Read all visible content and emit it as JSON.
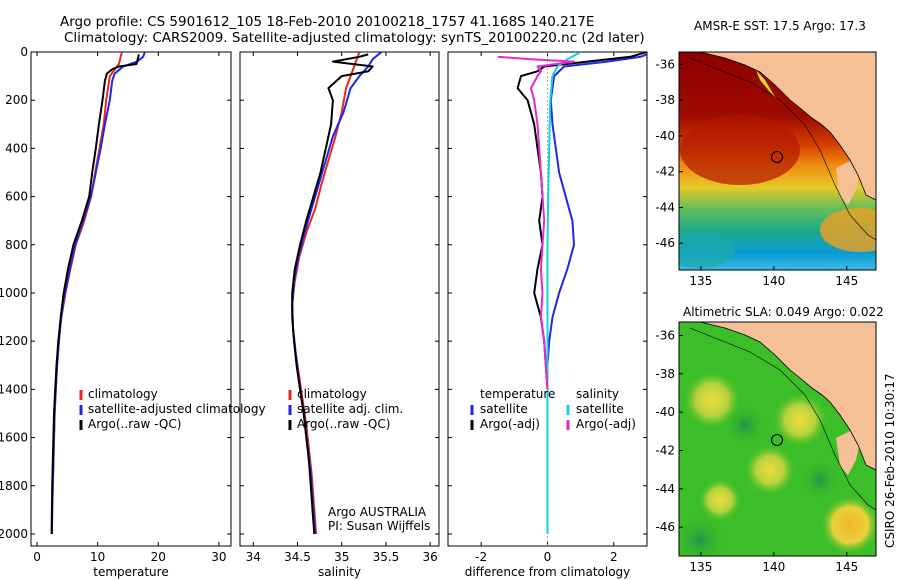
{
  "title": {
    "line1": "Argo profile: CS 5901612_105 18-Feb-2010 20100218_1757 41.168S 140.217E",
    "line2": "Climatology: CARS2009. Satellite-adjusted climatology: synTS_20100220.nc (2d later)"
  },
  "credit": "CSIRO 26-Feb-2010 10:30:17",
  "colors": {
    "climatology": "#e8281e",
    "satellite": "#1e28e6",
    "argo": "#000000",
    "salinity_satellite": "#14d2dc",
    "salinity_argo": "#e628d2",
    "land": "#f5c096"
  },
  "chart_data": [
    {
      "type": "line",
      "xlabel": "temperature",
      "ylabel": "",
      "xlim": [
        -1,
        32
      ],
      "ylim": [
        2050,
        0
      ],
      "y_reversed": true,
      "xticks": [
        0,
        10,
        20,
        30
      ],
      "yticks": [
        0,
        200,
        400,
        600,
        800,
        1000,
        1200,
        1400,
        1600,
        1800,
        2000
      ],
      "legend": [
        "climatology",
        "satellite-adjusted climatology",
        "Argo(..raw -QC)"
      ],
      "legend_placement": "lower-right",
      "series": [
        {
          "name": "climatology",
          "color_key": "climatology",
          "points": [
            [
              14,
              0
            ],
            [
              13.8,
              20
            ],
            [
              13.5,
              50
            ],
            [
              12.6,
              80
            ],
            [
              12,
              100
            ],
            [
              11.7,
              150
            ],
            [
              11.4,
              200
            ],
            [
              11,
              300
            ],
            [
              10.3,
              400
            ],
            [
              9.6,
              500
            ],
            [
              8.9,
              600
            ],
            [
              7.8,
              700
            ],
            [
              6.4,
              800
            ],
            [
              5.5,
              900
            ],
            [
              4.7,
              1000
            ],
            [
              4,
              1100
            ],
            [
              3.6,
              1200
            ],
            [
              3.3,
              1300
            ],
            [
              3.1,
              1400
            ],
            [
              2.9,
              1500
            ],
            [
              2.8,
              1600
            ],
            [
              2.7,
              1700
            ],
            [
              2.6,
              1800
            ],
            [
              2.5,
              1900
            ],
            [
              2.45,
              2000
            ]
          ]
        },
        {
          "name": "satellite-adjusted climatology",
          "color_key": "satellite",
          "points": [
            [
              17.8,
              0
            ],
            [
              17.5,
              20
            ],
            [
              16.5,
              40
            ],
            [
              14.2,
              60
            ],
            [
              12.8,
              90
            ],
            [
              12.4,
              120
            ],
            [
              12,
              200
            ],
            [
              11.2,
              300
            ],
            [
              10.5,
              400
            ],
            [
              9.7,
              500
            ],
            [
              8.9,
              600
            ],
            [
              7.6,
              700
            ],
            [
              6.3,
              800
            ],
            [
              5.4,
              900
            ],
            [
              4.6,
              1000
            ],
            [
              4,
              1100
            ],
            [
              3.6,
              1200
            ],
            [
              3.3,
              1300
            ],
            [
              3.1,
              1400
            ],
            [
              2.9,
              1500
            ],
            [
              2.8,
              1600
            ],
            [
              2.7,
              1700
            ],
            [
              2.6,
              1800
            ],
            [
              2.5,
              1900
            ],
            [
              2.45,
              2000
            ]
          ]
        },
        {
          "name": "Argo(..raw -QC)",
          "color_key": "argo",
          "points": [
            [
              16.8,
              10
            ],
            [
              16.6,
              30
            ],
            [
              16.4,
              50
            ],
            [
              13.5,
              60
            ],
            [
              12.5,
              70
            ],
            [
              11.5,
              90
            ],
            [
              11.2,
              120
            ],
            [
              10.8,
              200
            ],
            [
              10.2,
              300
            ],
            [
              9.7,
              400
            ],
            [
              9.1,
              500
            ],
            [
              8.6,
              600
            ],
            [
              7.4,
              700
            ],
            [
              6,
              800
            ],
            [
              5.1,
              900
            ],
            [
              4.4,
              1000
            ],
            [
              3.9,
              1100
            ],
            [
              3.5,
              1200
            ],
            [
              3.2,
              1300
            ],
            [
              3,
              1400
            ],
            [
              2.8,
              1500
            ],
            [
              2.7,
              1600
            ],
            [
              2.6,
              1700
            ],
            [
              2.5,
              1800
            ],
            [
              2.45,
              1900
            ],
            [
              2.4,
              2000
            ]
          ]
        }
      ]
    },
    {
      "type": "line",
      "xlabel": "salinity",
      "ylabel": "",
      "xlim": [
        33.85,
        36.1
      ],
      "ylim": [
        2050,
        0
      ],
      "y_reversed": true,
      "xticks": [
        34,
        34.5,
        35,
        35.5,
        36
      ],
      "xtick_labels": [
        "34",
        "34.5",
        "35",
        "35.5",
        "36"
      ],
      "legend": [
        "climatology",
        "satellite adj. clim.",
        "Argo(..raw -QC)"
      ],
      "legend_placement": "lower-right",
      "annotation": [
        "Argo AUSTRALIA",
        "PI: Susan Wijffels"
      ],
      "series": [
        {
          "name": "climatology",
          "color_key": "climatology",
          "points": [
            [
              35.2,
              0
            ],
            [
              35.15,
              50
            ],
            [
              35.1,
              100
            ],
            [
              35.05,
              150
            ],
            [
              35,
              250
            ],
            [
              34.93,
              350
            ],
            [
              34.85,
              450
            ],
            [
              34.77,
              550
            ],
            [
              34.7,
              650
            ],
            [
              34.6,
              750
            ],
            [
              34.52,
              850
            ],
            [
              34.47,
              950
            ],
            [
              34.44,
              1050
            ],
            [
              34.45,
              1150
            ],
            [
              34.48,
              1250
            ],
            [
              34.52,
              1350
            ],
            [
              34.56,
              1450
            ],
            [
              34.6,
              1550
            ],
            [
              34.63,
              1650
            ],
            [
              34.66,
              1750
            ],
            [
              34.68,
              1850
            ],
            [
              34.7,
              1950
            ],
            [
              34.71,
              2000
            ]
          ]
        },
        {
          "name": "satellite adj. clim.",
          "color_key": "satellite",
          "points": [
            [
              35.45,
              0
            ],
            [
              35.35,
              30
            ],
            [
              35.3,
              60
            ],
            [
              35.2,
              100
            ],
            [
              35.1,
              150
            ],
            [
              35.02,
              250
            ],
            [
              34.9,
              350
            ],
            [
              34.82,
              450
            ],
            [
              34.74,
              550
            ],
            [
              34.66,
              650
            ],
            [
              34.58,
              750
            ],
            [
              34.51,
              850
            ],
            [
              34.46,
              950
            ],
            [
              34.44,
              1050
            ],
            [
              34.45,
              1150
            ],
            [
              34.48,
              1250
            ],
            [
              34.51,
              1350
            ],
            [
              34.55,
              1450
            ],
            [
              34.59,
              1550
            ],
            [
              34.62,
              1650
            ],
            [
              34.65,
              1750
            ],
            [
              34.67,
              1850
            ],
            [
              34.69,
              1950
            ],
            [
              34.7,
              2000
            ]
          ]
        },
        {
          "name": "Argo(..raw -QC)",
          "color_key": "argo",
          "points": [
            [
              35.3,
              10
            ],
            [
              35.2,
              20
            ],
            [
              34.9,
              40
            ],
            [
              35.35,
              60
            ],
            [
              35.3,
              80
            ],
            [
              35,
              100
            ],
            [
              34.85,
              150
            ],
            [
              34.9,
              200
            ],
            [
              34.88,
              300
            ],
            [
              34.82,
              400
            ],
            [
              34.76,
              500
            ],
            [
              34.68,
              600
            ],
            [
              34.6,
              700
            ],
            [
              34.53,
              800
            ],
            [
              34.47,
              900
            ],
            [
              34.44,
              1000
            ],
            [
              34.44,
              1100
            ],
            [
              34.46,
              1200
            ],
            [
              34.49,
              1300
            ],
            [
              34.53,
              1400
            ],
            [
              34.57,
              1500
            ],
            [
              34.6,
              1600
            ],
            [
              34.63,
              1700
            ],
            [
              34.65,
              1800
            ],
            [
              34.67,
              1900
            ],
            [
              34.69,
              2000
            ]
          ]
        }
      ]
    },
    {
      "type": "line",
      "xlabel": "difference from climatology",
      "ylabel": "",
      "xlim": [
        -3,
        3
      ],
      "ylim": [
        2050,
        0
      ],
      "y_reversed": true,
      "xticks": [
        -2,
        0,
        2
      ],
      "legend_groups": [
        {
          "title": "temperature",
          "items": [
            "satellite",
            "Argo(-adj)"
          ]
        },
        {
          "title": "salinity",
          "items": [
            "satellite",
            "Argo(-adj)"
          ]
        }
      ],
      "legend_placement": "lower-center",
      "series": [
        {
          "name": "satellite",
          "group": "temperature",
          "color_key": "satellite",
          "points": [
            [
              3.2,
              0
            ],
            [
              2.8,
              20
            ],
            [
              1.8,
              40
            ],
            [
              0.5,
              60
            ],
            [
              0.2,
              100
            ],
            [
              0.1,
              200
            ],
            [
              0.15,
              300
            ],
            [
              0.25,
              400
            ],
            [
              0.35,
              500
            ],
            [
              0.55,
              600
            ],
            [
              0.75,
              700
            ],
            [
              0.8,
              800
            ],
            [
              0.6,
              900
            ],
            [
              0.35,
              1000
            ],
            [
              0.15,
              1100
            ],
            [
              0.05,
              1200
            ],
            [
              0,
              1300
            ],
            [
              0,
              1400
            ],
            [
              0,
              1600
            ],
            [
              0,
              1800
            ],
            [
              0,
              2000
            ]
          ]
        },
        {
          "name": "Argo(-adj)",
          "group": "temperature",
          "color_key": "argo",
          "points": [
            [
              3,
              0
            ],
            [
              2.5,
              20
            ],
            [
              1.2,
              40
            ],
            [
              -0.1,
              60
            ],
            [
              -0.3,
              80
            ],
            [
              -0.8,
              100
            ],
            [
              -0.9,
              150
            ],
            [
              -0.6,
              200
            ],
            [
              -0.4,
              300
            ],
            [
              -0.3,
              400
            ],
            [
              -0.2,
              500
            ],
            [
              -0.15,
              600
            ],
            [
              -0.25,
              700
            ],
            [
              -0.15,
              800
            ],
            [
              -0.3,
              900
            ],
            [
              -0.4,
              1000
            ],
            [
              -0.3,
              1050
            ],
            [
              -0.2,
              1100
            ],
            [
              -0.1,
              1200
            ],
            [
              -0.05,
              1300
            ],
            [
              0,
              1400
            ],
            [
              0,
              1600
            ],
            [
              0,
              1800
            ],
            [
              0,
              2000
            ]
          ]
        },
        {
          "name": "satellite",
          "group": "salinity",
          "color_key": "salinity_satellite",
          "points": [
            [
              1,
              0
            ],
            [
              0.6,
              30
            ],
            [
              0.3,
              60
            ],
            [
              0.15,
              100
            ],
            [
              0.08,
              200
            ],
            [
              0.05,
              400
            ],
            [
              0.02,
              600
            ],
            [
              0,
              800
            ],
            [
              0,
              1000
            ],
            [
              0,
              1200
            ],
            [
              0,
              1400
            ],
            [
              0,
              1600
            ],
            [
              0,
              1800
            ],
            [
              0,
              2000
            ]
          ]
        },
        {
          "name": "Argo(-adj)",
          "group": "salinity",
          "color_key": "salinity_argo",
          "points": [
            [
              -1.5,
              20
            ],
            [
              -0.5,
              30
            ],
            [
              0.8,
              40
            ],
            [
              -0.3,
              60
            ],
            [
              -0.2,
              80
            ],
            [
              -0.3,
              100
            ],
            [
              -0.5,
              150
            ],
            [
              -0.4,
              200
            ],
            [
              -0.3,
              300
            ],
            [
              -0.25,
              400
            ],
            [
              -0.2,
              500
            ],
            [
              -0.15,
              600
            ],
            [
              -0.1,
              700
            ],
            [
              -0.15,
              800
            ],
            [
              -0.2,
              900
            ],
            [
              -0.15,
              1000
            ],
            [
              -0.2,
              1100
            ],
            [
              -0.1,
              1200
            ],
            [
              -0.05,
              1300
            ],
            [
              0,
              1400
            ]
          ]
        }
      ]
    },
    {
      "type": "heatmap",
      "title": "AMSR-E SST: 17.5 Argo: 17.3",
      "xlim": [
        133.5,
        147
      ],
      "ylim": [
        -47.5,
        -35.3
      ],
      "xticks": [
        135,
        140,
        145
      ],
      "yticks": [
        -36,
        -38,
        -40,
        -42,
        -44,
        -46
      ],
      "marker": {
        "lon": 140.217,
        "lat": -41.168
      }
    },
    {
      "type": "heatmap",
      "title": "Altimetric SLA: 0.049 Argo: 0.022",
      "xlim": [
        133.5,
        147
      ],
      "ylim": [
        -47.5,
        -35.3
      ],
      "xticks": [
        135,
        140,
        145
      ],
      "yticks": [
        -36,
        -38,
        -40,
        -42,
        -44,
        -46
      ],
      "marker": {
        "lon": 140.217,
        "lat": -41.168
      }
    }
  ]
}
